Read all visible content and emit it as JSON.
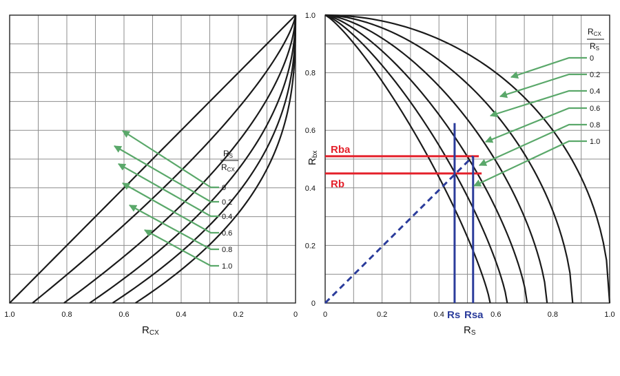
{
  "chart_data": [
    {
      "type": "line",
      "xlabel": "R",
      "xlabel_sub": "CX",
      "x_reversed": true,
      "xlim": [
        1.0,
        0
      ],
      "ylim": [
        0,
        1.0
      ],
      "grid": true,
      "x_ticks": [
        "1.0",
        "0.8",
        "0.6",
        "0.4",
        "0.2",
        "0"
      ],
      "legend_title_num": "R",
      "legend_title_num_sub": "S",
      "legend_title_den": "R",
      "legend_title_den_sub": "CX",
      "legend_labels": [
        "0",
        "0.2",
        "0.4",
        "0.6",
        "0.8",
        "1.0"
      ],
      "series": [
        {
          "label": "0",
          "x_intercept": 1.0
        },
        {
          "label": "0.2",
          "x_intercept": 0.92
        },
        {
          "label": "0.4",
          "x_intercept": 0.81
        },
        {
          "label": "0.6",
          "x_intercept": 0.72
        },
        {
          "label": "0.8",
          "x_intercept": 0.64
        },
        {
          "label": "1.0",
          "x_intercept": 0.56
        }
      ],
      "legend_color": "#5aa86a"
    },
    {
      "type": "line",
      "xlabel": "R",
      "xlabel_sub": "S",
      "ylabel": "R",
      "ylabel_sub": "bx",
      "xlim": [
        0,
        1.0
      ],
      "ylim": [
        0,
        1.0
      ],
      "grid": true,
      "x_ticks": [
        "0",
        "0.2",
        "0.4",
        "0.6",
        "0.8",
        "1.0"
      ],
      "y_ticks": [
        "0",
        "0.2",
        "0.4",
        "0.6",
        "0.8",
        "1.0"
      ],
      "legend_title_num": "R",
      "legend_title_num_sub": "CX",
      "legend_title_den": "R",
      "legend_title_den_sub": "S",
      "legend_labels": [
        "0",
        "0.2",
        "0.4",
        "0.6",
        "0.8",
        "1.0"
      ],
      "series": [
        {
          "label": "0",
          "x_intercept": 1.0
        },
        {
          "label": "0.2",
          "x_intercept": 0.87
        },
        {
          "label": "0.4",
          "x_intercept": 0.78
        },
        {
          "label": "0.6",
          "x_intercept": 0.71
        },
        {
          "label": "0.8",
          "x_intercept": 0.64
        },
        {
          "label": "1.0",
          "x_intercept": 0.58
        }
      ],
      "annotations": {
        "Rba": {
          "label": "Rba",
          "y": 0.51
        },
        "Rb": {
          "label": "Rb",
          "y": 0.45
        },
        "Rs": {
          "label": "Rs",
          "x": 0.455
        },
        "Rsa": {
          "label": "Rsa",
          "x": 0.52
        },
        "diagonal_end": [
          0.52,
          0.51
        ],
        "red_color": "#e4202a",
        "blue_color": "#2b3c9b"
      },
      "legend_color": "#5aa86a"
    }
  ]
}
